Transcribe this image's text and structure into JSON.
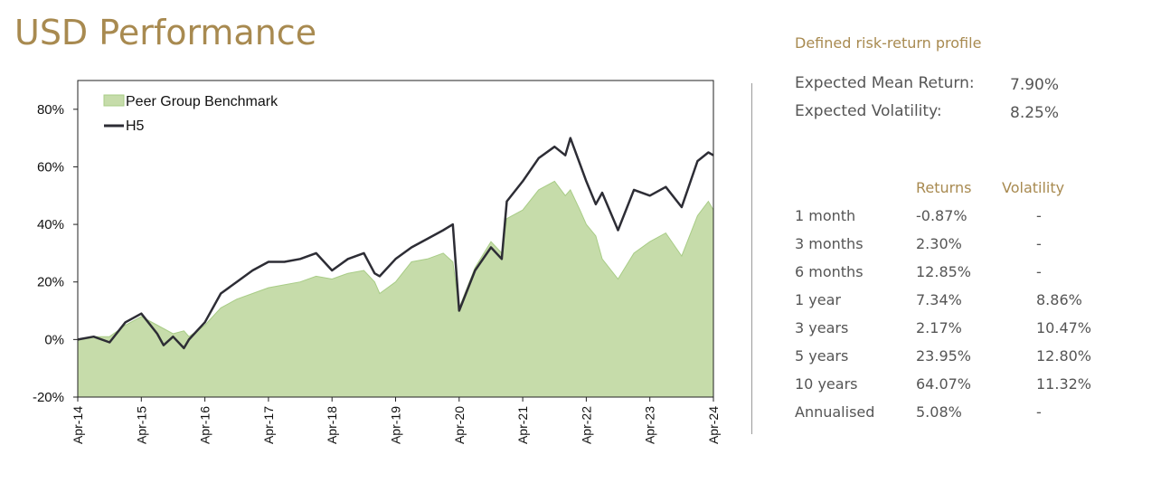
{
  "title": "USD Performance",
  "profile": {
    "heading": "Defined risk-return profile",
    "metrics": [
      {
        "label": "Expected Mean Return:",
        "value": "7.90%"
      },
      {
        "label": "Expected Volatility:",
        "value": "8.25%"
      }
    ]
  },
  "table": {
    "headers": {
      "returns": "Returns",
      "volatility": "Volatility"
    },
    "rows": [
      {
        "period": "1 month",
        "returns": "-0.87%",
        "volatility": "-"
      },
      {
        "period": "3 months",
        "returns": "2.30%",
        "volatility": "-"
      },
      {
        "period": "6 months",
        "returns": "12.85%",
        "volatility": "-"
      },
      {
        "period": "1 year",
        "returns": "7.34%",
        "volatility": "8.86%"
      },
      {
        "period": "3 years",
        "returns": "2.17%",
        "volatility": "10.47%"
      },
      {
        "period": "5 years",
        "returns": "23.95%",
        "volatility": "12.80%"
      },
      {
        "period": "10 years",
        "returns": "64.07%",
        "volatility": "11.32%"
      },
      {
        "period": "Annualised",
        "returns": "5.08%",
        "volatility": "-"
      }
    ]
  },
  "chart_data": {
    "type": "area",
    "x_label_format": "Apr-YY",
    "x_start": 2014.25,
    "x_end": 2024.25,
    "x_ticks": [
      "Apr-14",
      "Apr-15",
      "Apr-16",
      "Apr-17",
      "Apr-18",
      "Apr-19",
      "Apr-20",
      "Apr-21",
      "Apr-22",
      "Apr-23",
      "Apr-24"
    ],
    "y_ticks": [
      "80%",
      "60%",
      "40%",
      "20%",
      "0%",
      "-20%"
    ],
    "y_tick_values": [
      80,
      60,
      40,
      20,
      0,
      -20
    ],
    "ylim": [
      -20,
      90
    ],
    "legend_position": "top-left",
    "colors": {
      "benchmark_fill": "#c6dcaa",
      "benchmark_edge": "#a8cc86",
      "h5_line": "#2d2d35"
    },
    "series": [
      {
        "name": "Peer Group Benchmark",
        "kind": "area",
        "points": [
          [
            2014.25,
            0
          ],
          [
            2014.5,
            1
          ],
          [
            2014.75,
            1
          ],
          [
            2015.0,
            5
          ],
          [
            2015.25,
            8
          ],
          [
            2015.5,
            5
          ],
          [
            2015.75,
            2
          ],
          [
            2015.92,
            3
          ],
          [
            2016.0,
            1
          ],
          [
            2016.25,
            5
          ],
          [
            2016.5,
            11
          ],
          [
            2016.75,
            14
          ],
          [
            2017.0,
            16
          ],
          [
            2017.25,
            18
          ],
          [
            2017.5,
            19
          ],
          [
            2017.75,
            20
          ],
          [
            2018.0,
            22
          ],
          [
            2018.25,
            21
          ],
          [
            2018.5,
            23
          ],
          [
            2018.75,
            24
          ],
          [
            2018.92,
            20
          ],
          [
            2019.0,
            16
          ],
          [
            2019.25,
            20
          ],
          [
            2019.5,
            27
          ],
          [
            2019.75,
            28
          ],
          [
            2020.0,
            30
          ],
          [
            2020.15,
            27
          ],
          [
            2020.25,
            11
          ],
          [
            2020.5,
            25
          ],
          [
            2020.75,
            34
          ],
          [
            2020.92,
            30
          ],
          [
            2021.0,
            42
          ],
          [
            2021.25,
            45
          ],
          [
            2021.5,
            52
          ],
          [
            2021.75,
            55
          ],
          [
            2021.92,
            50
          ],
          [
            2022.0,
            52
          ],
          [
            2022.15,
            45
          ],
          [
            2022.25,
            40
          ],
          [
            2022.4,
            36
          ],
          [
            2022.5,
            28
          ],
          [
            2022.75,
            21
          ],
          [
            2023.0,
            30
          ],
          [
            2023.25,
            34
          ],
          [
            2023.5,
            37
          ],
          [
            2023.75,
            29
          ],
          [
            2024.0,
            43
          ],
          [
            2024.17,
            48
          ],
          [
            2024.25,
            45
          ]
        ]
      },
      {
        "name": "H5",
        "kind": "line",
        "points": [
          [
            2014.25,
            0
          ],
          [
            2014.5,
            1
          ],
          [
            2014.75,
            -1
          ],
          [
            2015.0,
            6
          ],
          [
            2015.25,
            9
          ],
          [
            2015.5,
            2
          ],
          [
            2015.6,
            -2
          ],
          [
            2015.75,
            1
          ],
          [
            2015.92,
            -3
          ],
          [
            2016.0,
            0
          ],
          [
            2016.25,
            6
          ],
          [
            2016.5,
            16
          ],
          [
            2016.75,
            20
          ],
          [
            2017.0,
            24
          ],
          [
            2017.25,
            27
          ],
          [
            2017.5,
            27
          ],
          [
            2017.75,
            28
          ],
          [
            2018.0,
            30
          ],
          [
            2018.25,
            24
          ],
          [
            2018.5,
            28
          ],
          [
            2018.75,
            30
          ],
          [
            2018.92,
            23
          ],
          [
            2019.0,
            22
          ],
          [
            2019.25,
            28
          ],
          [
            2019.5,
            32
          ],
          [
            2019.75,
            35
          ],
          [
            2020.0,
            38
          ],
          [
            2020.15,
            40
          ],
          [
            2020.25,
            10
          ],
          [
            2020.5,
            24
          ],
          [
            2020.75,
            32
          ],
          [
            2020.92,
            28
          ],
          [
            2021.0,
            48
          ],
          [
            2021.25,
            55
          ],
          [
            2021.5,
            63
          ],
          [
            2021.75,
            67
          ],
          [
            2021.92,
            64
          ],
          [
            2022.0,
            70
          ],
          [
            2022.15,
            61
          ],
          [
            2022.25,
            55
          ],
          [
            2022.4,
            47
          ],
          [
            2022.5,
            51
          ],
          [
            2022.75,
            38
          ],
          [
            2023.0,
            52
          ],
          [
            2023.25,
            50
          ],
          [
            2023.5,
            53
          ],
          [
            2023.75,
            46
          ],
          [
            2024.0,
            62
          ],
          [
            2024.17,
            65
          ],
          [
            2024.25,
            64
          ]
        ]
      }
    ]
  }
}
